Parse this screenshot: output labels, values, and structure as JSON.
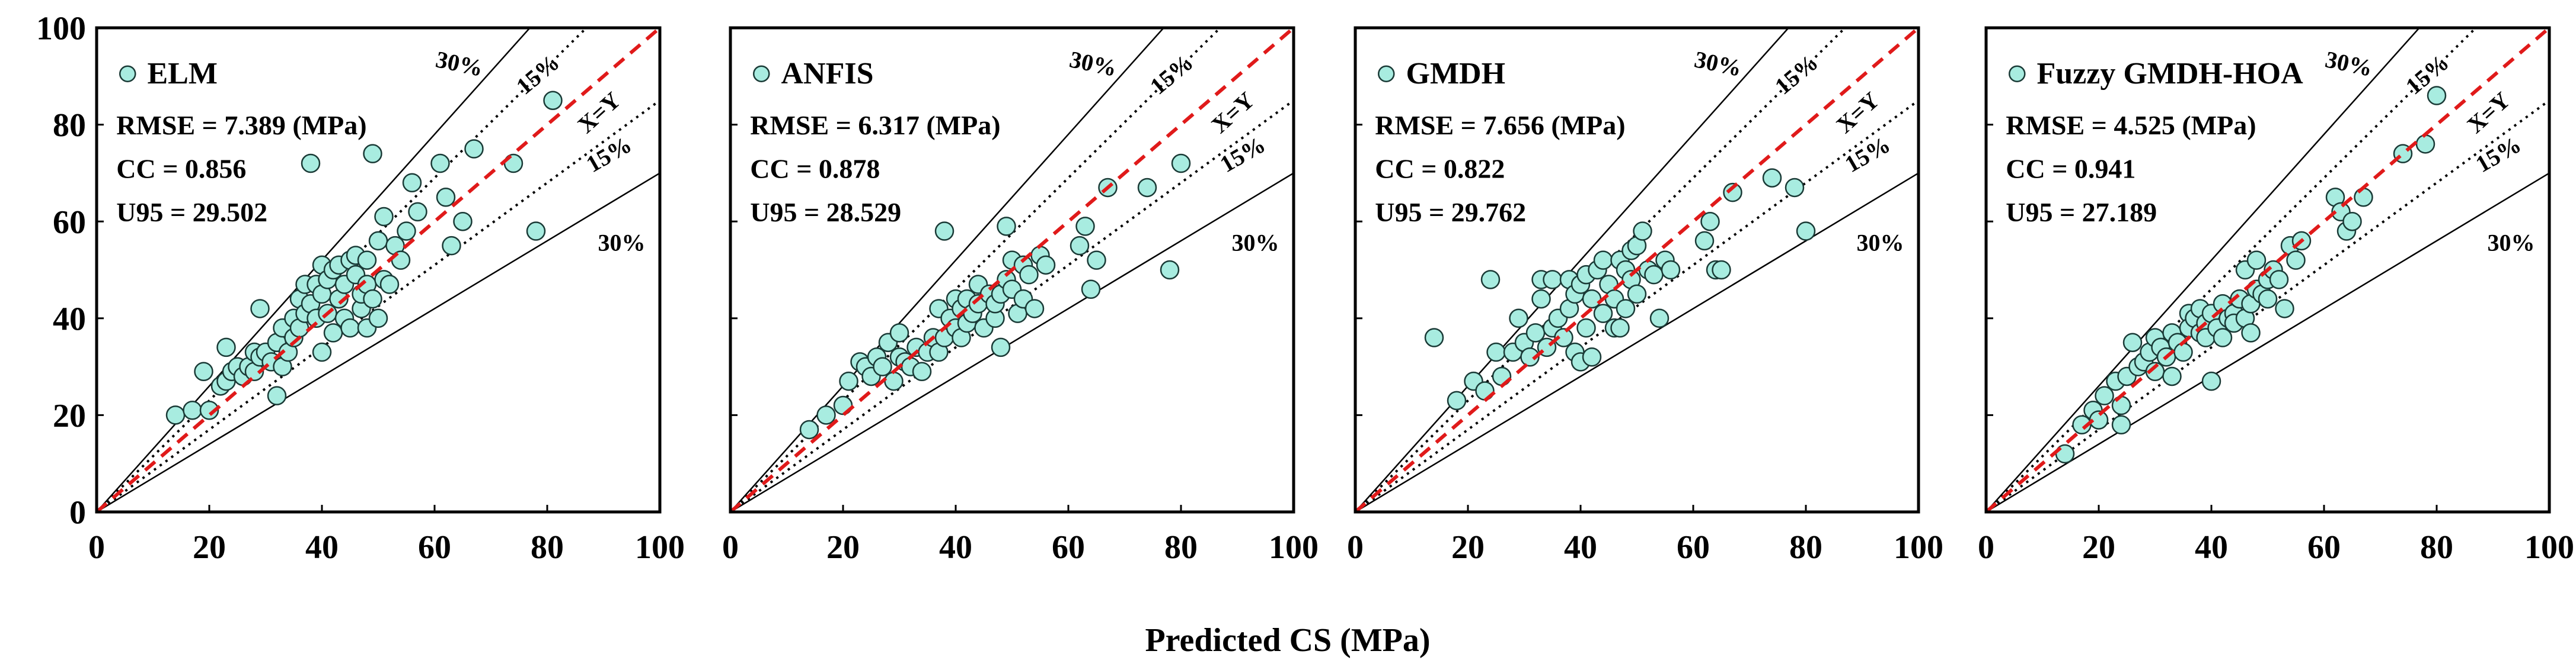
{
  "figure": {
    "xlabel": "Predicted CS (MPa)"
  },
  "style": {
    "marker_fill": "#a8ece0",
    "marker_stroke": "#1a3a36",
    "identity_line_color": "#e01a1a",
    "band_line_color": "#000000"
  },
  "chart_data": [
    {
      "type": "scatter",
      "legend": "ELM",
      "stats": [
        "RMSE = 7.389 (MPa)",
        "CC = 0.856",
        "U95 = 29.502"
      ],
      "band_labels": {
        "upper30": "30%",
        "upper15": "15%",
        "identity": "X=Y",
        "lower15": "15%",
        "lower30": "30%"
      },
      "xlim": [
        0,
        100
      ],
      "ylim": [
        0,
        100
      ],
      "xticks": [
        "0",
        "20",
        "40",
        "60",
        "80",
        "100"
      ],
      "yticks": [
        "0",
        "20",
        "40",
        "60",
        "80",
        "100"
      ],
      "grid": false,
      "points": [
        [
          14,
          20
        ],
        [
          17,
          21
        ],
        [
          19,
          29
        ],
        [
          20,
          21
        ],
        [
          22,
          26
        ],
        [
          23,
          34
        ],
        [
          23,
          27
        ],
        [
          24,
          29
        ],
        [
          25,
          30
        ],
        [
          26,
          28
        ],
        [
          27,
          30
        ],
        [
          28,
          29
        ],
        [
          28,
          33
        ],
        [
          29,
          42
        ],
        [
          29,
          32
        ],
        [
          30,
          33
        ],
        [
          31,
          31
        ],
        [
          32,
          35
        ],
        [
          32,
          24
        ],
        [
          33,
          30
        ],
        [
          33,
          38
        ],
        [
          34,
          33
        ],
        [
          35,
          36
        ],
        [
          35,
          40
        ],
        [
          36,
          38
        ],
        [
          36,
          44
        ],
        [
          37,
          41
        ],
        [
          37,
          47
        ],
        [
          38,
          43
        ],
        [
          38,
          72
        ],
        [
          39,
          40
        ],
        [
          39,
          47
        ],
        [
          40,
          33
        ],
        [
          40,
          45
        ],
        [
          40,
          51
        ],
        [
          41,
          41
        ],
        [
          41,
          48
        ],
        [
          42,
          37
        ],
        [
          42,
          50
        ],
        [
          43,
          44
        ],
        [
          43,
          51
        ],
        [
          44,
          40
        ],
        [
          44,
          47
        ],
        [
          45,
          38
        ],
        [
          45,
          52
        ],
        [
          46,
          49
        ],
        [
          46,
          53
        ],
        [
          47,
          42
        ],
        [
          47,
          45
        ],
        [
          48,
          38
        ],
        [
          48,
          47
        ],
        [
          48,
          52
        ],
        [
          49,
          74
        ],
        [
          49,
          44
        ],
        [
          50,
          40
        ],
        [
          50,
          56
        ],
        [
          51,
          61
        ],
        [
          51,
          48
        ],
        [
          52,
          47
        ],
        [
          53,
          55
        ],
        [
          54,
          52
        ],
        [
          55,
          58
        ],
        [
          56,
          68
        ],
        [
          57,
          62
        ],
        [
          61,
          72
        ],
        [
          62,
          65
        ],
        [
          63,
          55
        ],
        [
          65,
          60
        ],
        [
          67,
          75
        ],
        [
          74,
          72
        ],
        [
          78,
          58
        ],
        [
          81,
          85
        ]
      ]
    },
    {
      "type": "scatter",
      "legend": "ANFIS",
      "stats": [
        "RMSE = 6.317 (MPa)",
        "CC = 0.878",
        "U95 = 28.529"
      ],
      "band_labels": {
        "upper30": "30%",
        "upper15": "15%",
        "identity": "X=Y",
        "lower15": "15%",
        "lower30": "30%"
      },
      "xlim": [
        0,
        100
      ],
      "ylim": [
        0,
        100
      ],
      "xticks": [
        "0",
        "20",
        "40",
        "60",
        "80",
        "100"
      ],
      "yticks": [
        "0",
        "20",
        "40",
        "60",
        "80",
        "100"
      ],
      "grid": false,
      "points": [
        [
          14,
          17
        ],
        [
          17,
          20
        ],
        [
          20,
          22
        ],
        [
          21,
          27
        ],
        [
          23,
          31
        ],
        [
          24,
          30
        ],
        [
          25,
          28
        ],
        [
          26,
          32
        ],
        [
          27,
          30
        ],
        [
          28,
          35
        ],
        [
          29,
          27
        ],
        [
          30,
          32
        ],
        [
          30,
          37
        ],
        [
          31,
          31
        ],
        [
          32,
          30
        ],
        [
          33,
          34
        ],
        [
          34,
          29
        ],
        [
          35,
          33
        ],
        [
          36,
          36
        ],
        [
          37,
          42
        ],
        [
          37,
          33
        ],
        [
          38,
          58
        ],
        [
          38,
          36
        ],
        [
          39,
          40
        ],
        [
          40,
          44
        ],
        [
          40,
          38
        ],
        [
          41,
          36
        ],
        [
          41,
          42
        ],
        [
          42,
          39
        ],
        [
          42,
          44
        ],
        [
          43,
          41
        ],
        [
          44,
          47
        ],
        [
          44,
          43
        ],
        [
          45,
          38
        ],
        [
          46,
          45
        ],
        [
          47,
          40
        ],
        [
          47,
          43
        ],
        [
          48,
          34
        ],
        [
          48,
          45
        ],
        [
          49,
          59
        ],
        [
          49,
          48
        ],
        [
          50,
          46
        ],
        [
          50,
          52
        ],
        [
          51,
          41
        ],
        [
          52,
          51
        ],
        [
          52,
          44
        ],
        [
          53,
          49
        ],
        [
          54,
          42
        ],
        [
          55,
          53
        ],
        [
          56,
          51
        ],
        [
          62,
          55
        ],
        [
          63,
          59
        ],
        [
          64,
          46
        ],
        [
          65,
          52
        ],
        [
          67,
          67
        ],
        [
          74,
          67
        ],
        [
          78,
          50
        ],
        [
          80,
          72
        ]
      ]
    },
    {
      "type": "scatter",
      "legend": "GMDH",
      "stats": [
        "RMSE = 7.656 (MPa)",
        "CC = 0.822",
        "U95 = 29.762"
      ],
      "band_labels": {
        "upper30": "30%",
        "upper15": "15%",
        "identity": "X=Y",
        "lower15": "15%",
        "lower30": "30%"
      },
      "xlim": [
        0,
        100
      ],
      "ylim": [
        0,
        100
      ],
      "xticks": [
        "0",
        "20",
        "40",
        "60",
        "80",
        "100"
      ],
      "yticks": [
        "0",
        "20",
        "40",
        "60",
        "80",
        "100"
      ],
      "grid": false,
      "points": [
        [
          14,
          36
        ],
        [
          18,
          23
        ],
        [
          21,
          27
        ],
        [
          23,
          25
        ],
        [
          24,
          48
        ],
        [
          25,
          33
        ],
        [
          26,
          28
        ],
        [
          28,
          33
        ],
        [
          29,
          40
        ],
        [
          30,
          35
        ],
        [
          31,
          32
        ],
        [
          32,
          37
        ],
        [
          33,
          44
        ],
        [
          33,
          48
        ],
        [
          34,
          34
        ],
        [
          35,
          38
        ],
        [
          35,
          48
        ],
        [
          36,
          40
        ],
        [
          37,
          36
        ],
        [
          38,
          42
        ],
        [
          38,
          48
        ],
        [
          39,
          45
        ],
        [
          39,
          33
        ],
        [
          40,
          47
        ],
        [
          40,
          31
        ],
        [
          41,
          38
        ],
        [
          41,
          49
        ],
        [
          42,
          32
        ],
        [
          42,
          44
        ],
        [
          43,
          50
        ],
        [
          44,
          52
        ],
        [
          44,
          41
        ],
        [
          45,
          47
        ],
        [
          46,
          38
        ],
        [
          46,
          44
        ],
        [
          47,
          52
        ],
        [
          47,
          38
        ],
        [
          48,
          42
        ],
        [
          48,
          50
        ],
        [
          49,
          54
        ],
        [
          49,
          48
        ],
        [
          50,
          55
        ],
        [
          50,
          45
        ],
        [
          51,
          58
        ],
        [
          52,
          50
        ],
        [
          53,
          49
        ],
        [
          54,
          40
        ],
        [
          55,
          52
        ],
        [
          56,
          50
        ],
        [
          62,
          56
        ],
        [
          63,
          60
        ],
        [
          64,
          50
        ],
        [
          65,
          50
        ],
        [
          67,
          66
        ],
        [
          74,
          69
        ],
        [
          78,
          67
        ],
        [
          80,
          58
        ]
      ]
    },
    {
      "type": "scatter",
      "legend": "Fuzzy GMDH-HOA",
      "stats": [
        "RMSE = 4.525 (MPa)",
        "CC = 0.941",
        "U95 = 27.189"
      ],
      "band_labels": {
        "upper30": "30%",
        "upper15": "15%",
        "identity": "X=Y",
        "lower15": "15%",
        "lower30": "30%"
      },
      "xlim": [
        0,
        100
      ],
      "ylim": [
        0,
        100
      ],
      "xticks": [
        "0",
        "20",
        "40",
        "60",
        "80",
        "100"
      ],
      "yticks": [
        "0",
        "20",
        "40",
        "60",
        "80",
        "100"
      ],
      "grid": false,
      "points": [
        [
          14,
          12
        ],
        [
          17,
          18
        ],
        [
          19,
          21
        ],
        [
          20,
          19
        ],
        [
          21,
          24
        ],
        [
          23,
          27
        ],
        [
          24,
          22
        ],
        [
          24,
          18
        ],
        [
          25,
          28
        ],
        [
          26,
          35
        ],
        [
          27,
          30
        ],
        [
          28,
          31
        ],
        [
          29,
          33
        ],
        [
          30,
          36
        ],
        [
          30,
          29
        ],
        [
          31,
          34
        ],
        [
          32,
          32
        ],
        [
          33,
          37
        ],
        [
          33,
          28
        ],
        [
          34,
          35
        ],
        [
          35,
          33
        ],
        [
          36,
          41
        ],
        [
          36,
          38
        ],
        [
          37,
          40
        ],
        [
          38,
          37
        ],
        [
          38,
          42
        ],
        [
          39,
          39
        ],
        [
          39,
          36
        ],
        [
          40,
          41
        ],
        [
          40,
          27
        ],
        [
          41,
          38
        ],
        [
          42,
          43
        ],
        [
          42,
          36
        ],
        [
          43,
          40
        ],
        [
          44,
          41
        ],
        [
          44,
          39
        ],
        [
          45,
          44
        ],
        [
          46,
          40
        ],
        [
          46,
          50
        ],
        [
          47,
          43
        ],
        [
          47,
          37
        ],
        [
          48,
          46
        ],
        [
          48,
          52
        ],
        [
          49,
          45
        ],
        [
          50,
          48
        ],
        [
          50,
          44
        ],
        [
          51,
          50
        ],
        [
          52,
          48
        ],
        [
          53,
          42
        ],
        [
          54,
          55
        ],
        [
          55,
          52
        ],
        [
          56,
          56
        ],
        [
          62,
          65
        ],
        [
          63,
          62
        ],
        [
          64,
          58
        ],
        [
          65,
          60
        ],
        [
          67,
          65
        ],
        [
          74,
          74
        ],
        [
          78,
          76
        ],
        [
          80,
          86
        ]
      ]
    }
  ]
}
